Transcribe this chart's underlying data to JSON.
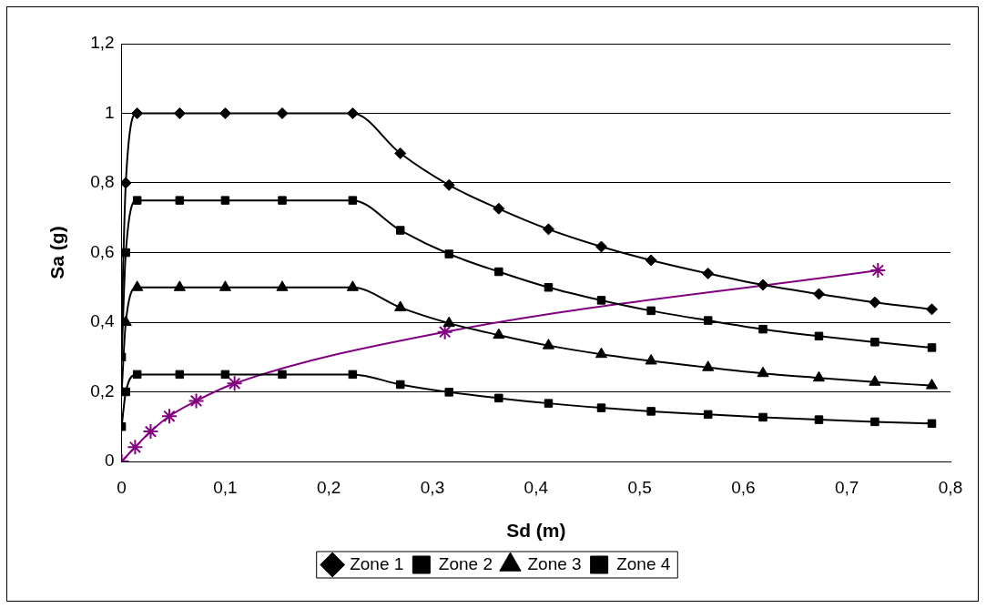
{
  "chart_data": {
    "type": "line",
    "xlabel": "Sd (m)",
    "ylabel": "Sa (g)",
    "xlim": [
      0,
      0.8
    ],
    "xticks": [
      0,
      {
        "value": 0.1,
        "label": "0,1"
      },
      {
        "value": 0.2,
        "label": "0,2"
      },
      {
        "value": 0.3,
        "label": "0,3"
      },
      {
        "value": 0.4,
        "label": "0,4"
      },
      {
        "value": 0.5,
        "label": "0,5"
      },
      {
        "value": 0.6,
        "label": "0,6"
      },
      {
        "value": 0.7,
        "label": "0,7"
      },
      {
        "value": 0.8,
        "label": "0,8"
      }
    ],
    "ylim": [
      0,
      1.2
    ],
    "yticks": [
      0,
      {
        "value": 0.2,
        "label": "0,2"
      },
      {
        "value": 0.4,
        "label": "0,4"
      },
      {
        "value": 0.6,
        "label": "0,6"
      },
      {
        "value": 0.8,
        "label": "0,8"
      },
      1,
      {
        "value": 1.2,
        "label": "1,2"
      }
    ],
    "grid": "y",
    "legend": "bottom",
    "line_style": "solid",
    "x": [
      0,
      0.004,
      0.015,
      0.056,
      0.1,
      0.155,
      0.223,
      0.269,
      0.316,
      0.364,
      0.412,
      0.463,
      0.511,
      0.566,
      0.619,
      0.673,
      0.727,
      0.782
    ],
    "series": [
      {
        "name": "Zone 1",
        "color": "#000000",
        "marker": "diamond",
        "values": [
          0.4,
          0.8,
          1,
          1,
          1,
          1,
          1,
          0.885,
          0.794,
          0.726,
          0.667,
          0.617,
          0.578,
          0.54,
          0.507,
          0.481,
          0.457,
          0.437
        ]
      },
      {
        "name": "Zone 2",
        "color": "#000000",
        "marker": "square",
        "values": [
          0.3,
          0.6,
          0.75,
          0.75,
          0.75,
          0.75,
          0.75,
          0.664,
          0.596,
          0.545,
          0.5,
          0.463,
          0.433,
          0.405,
          0.38,
          0.36,
          0.343,
          0.327
        ]
      },
      {
        "name": "Zone 3",
        "color": "#000000",
        "marker": "triangle",
        "values": [
          0.2,
          0.4,
          0.5,
          0.5,
          0.5,
          0.5,
          0.5,
          0.442,
          0.397,
          0.363,
          0.333,
          0.308,
          0.289,
          0.27,
          0.253,
          0.24,
          0.228,
          0.218
        ]
      },
      {
        "name": "Zone 4",
        "color": "#000000",
        "marker": "square",
        "values": [
          0.1,
          0.2,
          0.25,
          0.25,
          0.25,
          0.25,
          0.25,
          0.221,
          0.199,
          0.182,
          0.167,
          0.154,
          0.144,
          0.135,
          0.127,
          0.12,
          0.114,
          0.109
        ]
      },
      {
        "color": "#800080",
        "marker": "cross",
        "x": [
          0,
          0.013,
          0.028,
          0.046,
          0.072,
          0.109,
          0.312,
          0.73
        ],
        "values": [
          0,
          0.041,
          0.086,
          0.13,
          0.174,
          0.224,
          0.372,
          0.549
        ]
      }
    ]
  }
}
